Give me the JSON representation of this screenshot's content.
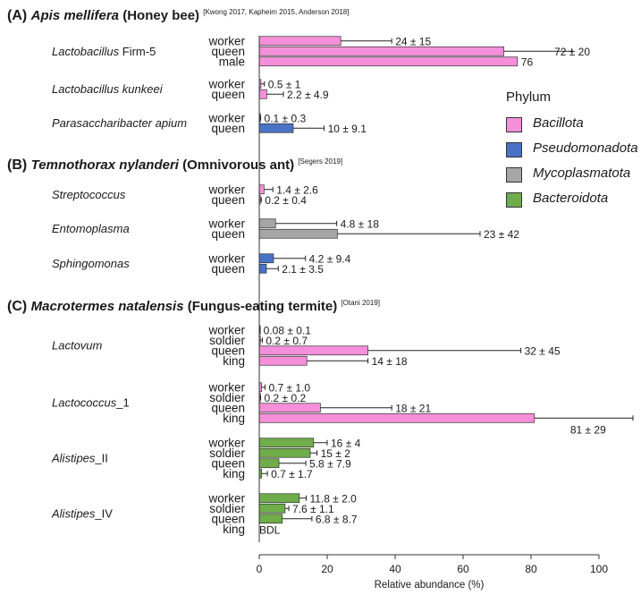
{
  "colors": {
    "Bacillota": "#f58fd9",
    "Pseudomonadota": "#4a72c4",
    "Mycoplasmatota": "#a6a6a6",
    "Bacteroidota": "#6fac4a"
  },
  "legend": {
    "title": "Phylum",
    "items": [
      "Bacillota",
      "Pseudomonadota",
      "Mycoplasmatota",
      "Bacteroidota"
    ]
  },
  "chart_data": {
    "type": "bar",
    "orientation": "horizontal",
    "xlabel": "Relative abundance (%)",
    "xlim": [
      0,
      100
    ],
    "xticks": [
      "0",
      "20",
      "40",
      "60",
      "80",
      "100"
    ],
    "panels": [
      {
        "label": "(A)",
        "species": "Apis mellifera",
        "common": "(Honey bee)",
        "refs": "[Kwong 2017, Kapheim 2015, Anderson 2018]",
        "taxa": [
          {
            "name": "Lactobacillus",
            "suffix": " Firm-5",
            "phylum": "Bacillota",
            "bars": [
              {
                "caste": "worker",
                "value": 24,
                "err": 15,
                "label": "24 ± 15"
              },
              {
                "caste": "queen",
                "value": 72,
                "err": 20,
                "label": "72 ± 20"
              },
              {
                "caste": "male",
                "value": 76,
                "err": 0,
                "label": "76"
              }
            ]
          },
          {
            "name": "Lactobacillus kunkeei",
            "suffix": "",
            "phylum": "Bacillota",
            "bars": [
              {
                "caste": "worker",
                "value": 0.5,
                "err": 1,
                "label": "0.5 ± 1"
              },
              {
                "caste": "queen",
                "value": 2.2,
                "err": 4.9,
                "label": "2.2 ± 4.9"
              }
            ]
          },
          {
            "name": "Parasaccharibacter apium",
            "suffix": "",
            "phylum": "Pseudomonadota",
            "bars": [
              {
                "caste": "worker",
                "value": 0.1,
                "err": 0.3,
                "label": "0.1 ± 0.3"
              },
              {
                "caste": "queen",
                "value": 10,
                "err": 9.1,
                "label": "10 ± 9.1"
              }
            ]
          }
        ]
      },
      {
        "label": "(B)",
        "species": "Temnothorax nylanderi",
        "common": "(Omnivorous ant)",
        "refs": "[Segers 2019]",
        "taxa": [
          {
            "name": "Streptococcus",
            "suffix": "",
            "phylum": "Bacillota",
            "bars": [
              {
                "caste": "worker",
                "value": 1.4,
                "err": 2.6,
                "label": "1.4 ± 2.6"
              },
              {
                "caste": "queen",
                "value": 0.2,
                "err": 0.4,
                "label": "0.2 ± 0.4"
              }
            ]
          },
          {
            "name": "Entomoplasma",
            "suffix": "",
            "phylum": "Mycoplasmatota",
            "bars": [
              {
                "caste": "worker",
                "value": 4.8,
                "err": 18,
                "label": "4.8 ± 18"
              },
              {
                "caste": "queen",
                "value": 23,
                "err": 42,
                "label": "23 ± 42"
              }
            ]
          },
          {
            "name": "Sphingomonas",
            "suffix": "",
            "phylum": "Pseudomonadota",
            "bars": [
              {
                "caste": "worker",
                "value": 4.2,
                "err": 9.4,
                "label": "4.2 ± 9.4"
              },
              {
                "caste": "queen",
                "value": 2.1,
                "err": 3.5,
                "label": "2.1 ± 3.5"
              }
            ]
          }
        ]
      },
      {
        "label": "(C)",
        "species": "Macrotermes natalensis",
        "common": "(Fungus-eating termite)",
        "refs": "[Otani 2019]",
        "taxa": [
          {
            "name": "Lactovum",
            "suffix": "",
            "phylum": "Bacillota",
            "bars": [
              {
                "caste": "worker",
                "value": 0.08,
                "err": 0.1,
                "label": "0.08 ± 0.1"
              },
              {
                "caste": "soldier",
                "value": 0.2,
                "err": 0.7,
                "label": "0.2 ± 0.7"
              },
              {
                "caste": "queen",
                "value": 32,
                "err": 45,
                "label": "32 ± 45"
              },
              {
                "caste": "king",
                "value": 14,
                "err": 18,
                "label": "14 ± 18"
              }
            ]
          },
          {
            "name": "Lactococcus",
            "suffix": "_1",
            "phylum": "Bacillota",
            "bars": [
              {
                "caste": "worker",
                "value": 0.7,
                "err": 1.0,
                "label": "0.7 ± 1.0"
              },
              {
                "caste": "soldier",
                "value": 0.2,
                "err": 0.2,
                "label": "0.2 ± 0.2"
              },
              {
                "caste": "queen",
                "value": 18,
                "err": 21,
                "label": "18 ± 21"
              },
              {
                "caste": "king",
                "value": 81,
                "err": 29,
                "label": "81 ± 29"
              }
            ]
          },
          {
            "name": "Alistipes",
            "suffix": "_II",
            "phylum": "Bacteroidota",
            "bars": [
              {
                "caste": "worker",
                "value": 16,
                "err": 4,
                "label": "16 ± 4"
              },
              {
                "caste": "soldier",
                "value": 15,
                "err": 2,
                "label": "15 ± 2"
              },
              {
                "caste": "queen",
                "value": 5.8,
                "err": 7.9,
                "label": "5.8 ± 7.9"
              },
              {
                "caste": "king",
                "value": 0.7,
                "err": 1.7,
                "label": "0.7 ± 1.7"
              }
            ]
          },
          {
            "name": "Alistipes",
            "suffix": "_IV",
            "phylum": "Bacteroidota",
            "bars": [
              {
                "caste": "worker",
                "value": 11.8,
                "err": 2.0,
                "label": "11.8 ± 2.0"
              },
              {
                "caste": "soldier",
                "value": 7.6,
                "err": 1.1,
                "label": "7.6 ± 1.1"
              },
              {
                "caste": "queen",
                "value": 6.8,
                "err": 8.7,
                "label": "6.8 ± 8.7"
              },
              {
                "caste": "king",
                "value": 0,
                "err": 0,
                "label": "BDL"
              }
            ]
          }
        ]
      }
    ]
  }
}
